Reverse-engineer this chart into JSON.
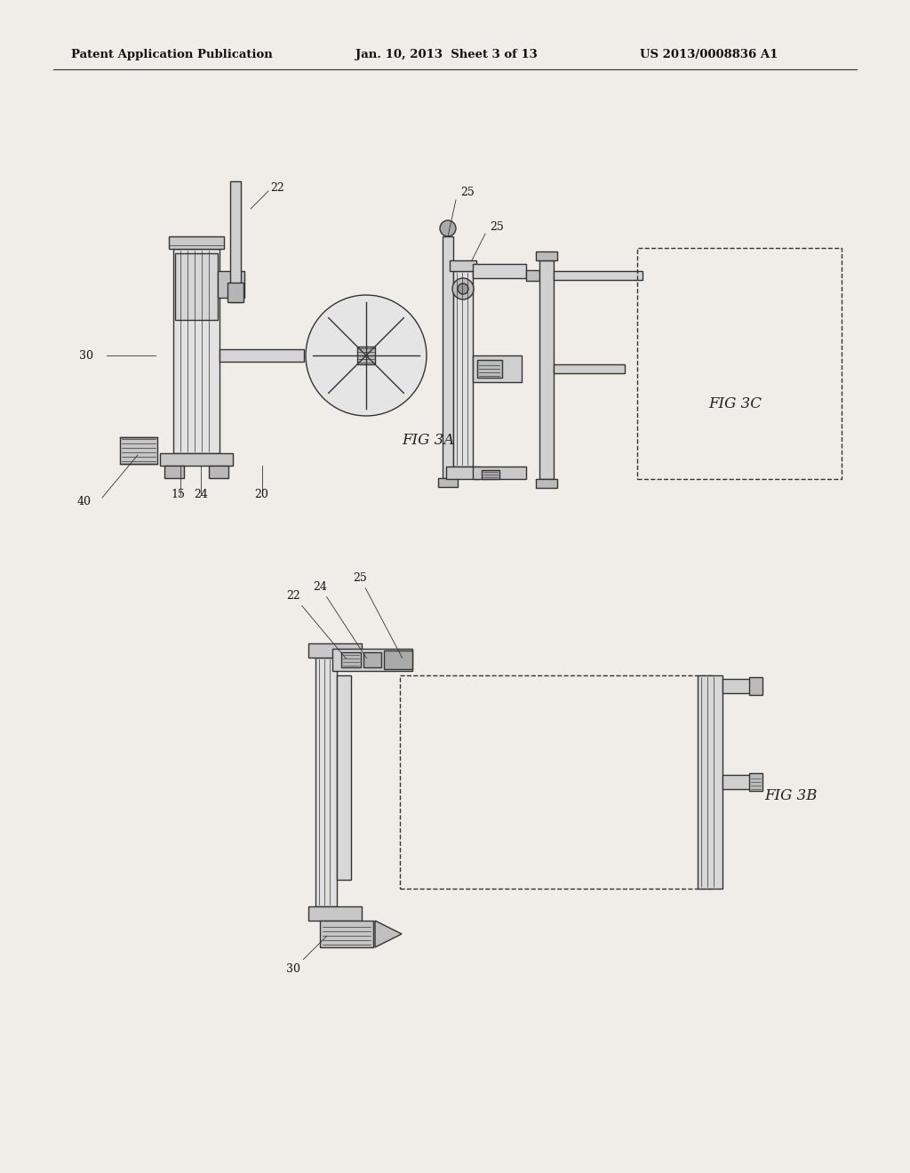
{
  "bg_color": "#f0ede8",
  "page_color": "#f0ede8",
  "line_color": "#333333",
  "lw": 1.0,
  "tlw": 0.6,
  "header_left": "Patent Application Publication",
  "header_mid": "Jan. 10, 2013  Sheet 3 of 13",
  "header_right": "US 2013/0008836 A1",
  "fig3a_label": "FIG 3A",
  "fig3b_label": "FIG 3B",
  "fig3c_label": "FIG 3C"
}
